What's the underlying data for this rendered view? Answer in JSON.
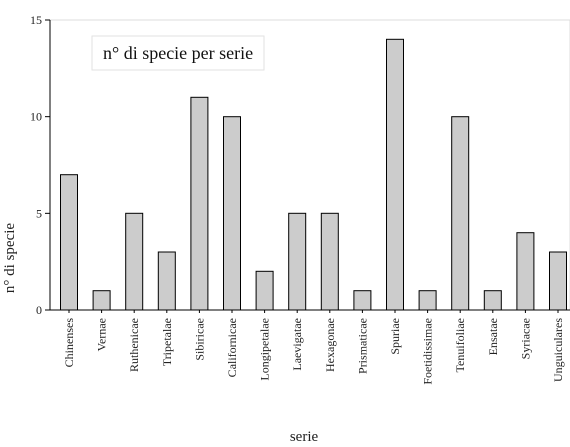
{
  "chart_data": {
    "type": "bar",
    "title": "",
    "annotation": "n° di specie per serie",
    "xlabel": "serie",
    "ylabel": "n° di specie",
    "ylim": [
      0,
      15
    ],
    "yticks": [
      0,
      5,
      10,
      15
    ],
    "grid": false,
    "bar_color": "#cccccc",
    "categories": [
      "Chinenses",
      "Vernae",
      "Ruthenicae",
      "Tripetalae",
      "Sibiricae",
      "Californicae",
      "Longipetalae",
      "Laevigatae",
      "Hexagonae",
      "Prismaticae",
      "Spuriae",
      "Foetidissimae",
      "Tenuifoliae",
      "Ensatae",
      "Syriacae",
      "Unguiculares"
    ],
    "values": [
      7,
      1,
      5,
      3,
      11,
      10,
      2,
      5,
      5,
      1,
      14,
      1,
      10,
      1,
      4,
      3
    ]
  }
}
